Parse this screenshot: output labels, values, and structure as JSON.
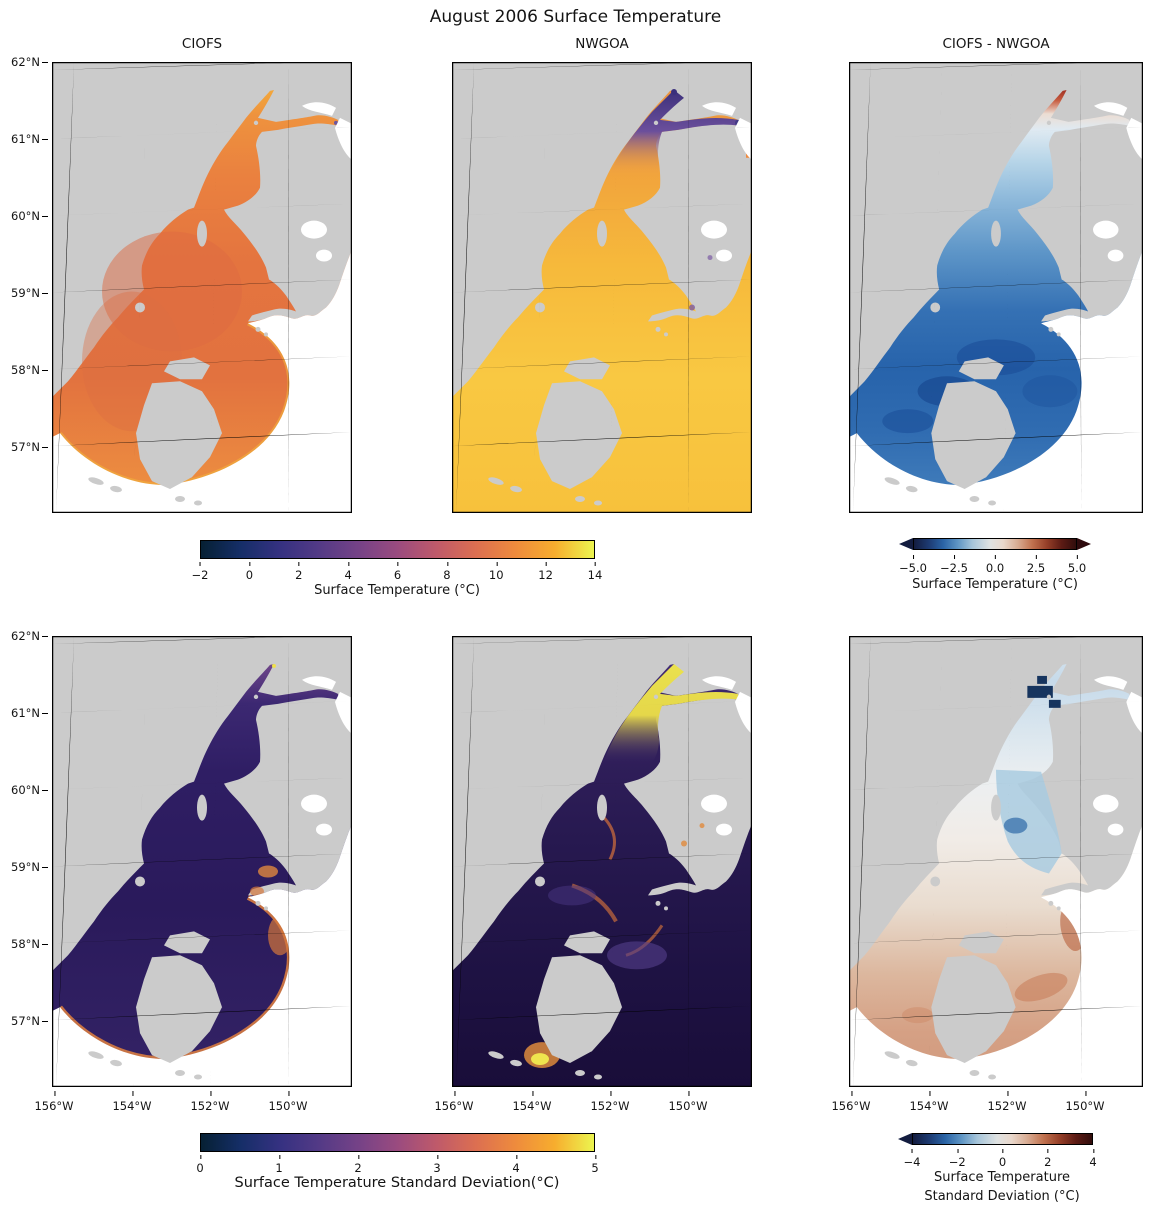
{
  "figure": {
    "title": "August 2006 Surface Temperature"
  },
  "panels": {
    "top_left": {
      "title": "CIOFS"
    },
    "top_middle": {
      "title": "NWGOA"
    },
    "top_right": {
      "title": "CIOFS - NWGOA"
    }
  },
  "axes": {
    "lat_ticks": [
      "62°N",
      "61°N",
      "60°N",
      "59°N",
      "58°N",
      "57°N"
    ],
    "lon_ticks": [
      "156°W",
      "154°W",
      "152°W",
      "150°W"
    ]
  },
  "colorbars": {
    "temperature": {
      "label": "Surface Temperature (°C)",
      "ticks": [
        "−2",
        "0",
        "2",
        "4",
        "6",
        "8",
        "10",
        "12",
        "14"
      ],
      "colormap": "thermal",
      "min": -2,
      "max": 14,
      "extend": "none"
    },
    "temperature_diff": {
      "label": "Surface Temperature (°C)",
      "ticks": [
        "−5.0",
        "−2.5",
        "0.0",
        "2.5",
        "5.0"
      ],
      "colormap": "balance (diverging)",
      "min": -5,
      "max": 5,
      "extend": "both"
    },
    "std": {
      "label": "Surface Temperature Standard Deviation(°C)",
      "ticks": [
        "0",
        "1",
        "2",
        "3",
        "4",
        "5"
      ],
      "colormap": "thermal",
      "min": 0,
      "max": 5,
      "extend": "none"
    },
    "std_diff": {
      "label_line1": "Surface Temperature",
      "label_line2": "Standard Deviation (°C)",
      "ticks": [
        "−4",
        "−2",
        "0",
        "2",
        "4"
      ],
      "colormap": "balance (diverging)",
      "min": -4,
      "max": 4,
      "extend": "min"
    }
  },
  "colors": {
    "land": "#cbcbcb",
    "no_data": "#ffffff",
    "gridline": "#8f8f8f",
    "thermal_start": "#062033",
    "thermal_end": "#ecf54f",
    "balance_negative": "#1d3a71",
    "balance_positive": "#953f28"
  },
  "chart_data": [
    {
      "type": "heatmap",
      "panel": "top-left",
      "title": "CIOFS",
      "variable": "Surface Temperature (°C)",
      "colormap": "thermal",
      "range": [
        -2,
        14
      ],
      "region_values": {
        "upper_inlet_forks": "11–14 (yellow-orange)",
        "mid_inlet_channel": "10–11 (orange)",
        "lower_inlet_and_shelikof_strait": "9–10 (deep orange-red)",
        "fan_domain_edge": "10–12",
        "outside_model_domain": "no data (white)"
      }
    },
    {
      "type": "heatmap",
      "panel": "top-middle",
      "title": "NWGOA",
      "variable": "Surface Temperature (°C)",
      "colormap": "thermal",
      "range": [
        -2,
        14
      ],
      "region_values": {
        "upper_inlet_forks": "0–5 (cold, dark purple tips)",
        "mid_inlet_channel": "9–10 (orange)",
        "gulf_of_alaska_open_water": "11–13 (yellow)",
        "shelikof_strait": "10–12"
      }
    },
    {
      "type": "heatmap",
      "panel": "top-right",
      "title": "CIOFS - NWGOA",
      "variable": "Surface Temperature difference (°C)",
      "colormap": "balance (diverging)",
      "range": [
        -5,
        5
      ],
      "extend": "both",
      "region_values": {
        "upper_inlet_forks": "+3 to +5 (dark red, CIOFS warmer)",
        "mid_inlet": "−1 to −3 (light to mid blue)",
        "lower_inlet_and_strait": "−2 to −5 (deep blue, CIOFS colder)",
        "outside_model_domain": "no data (white)"
      }
    },
    {
      "type": "heatmap",
      "panel": "bottom-left",
      "title": "CIOFS",
      "variable": "Surface Temperature Standard Deviation (°C)",
      "colormap": "thermal",
      "range": [
        0,
        5
      ],
      "region_values": {
        "most_of_domain": "0.5–1.5 (dark purple)",
        "fan_domain_edge_rim": "2.5–4 (orange rim)",
        "upper_arms_and_coastal_spots": "2–4 (orange flecks)"
      }
    },
    {
      "type": "heatmap",
      "panel": "bottom-middle",
      "title": "NWGOA",
      "variable": "Surface Temperature Standard Deviation (°C)",
      "colormap": "thermal",
      "range": [
        0,
        5
      ],
      "region_values": {
        "upper_inlet_forks": "4.5–5 (bright yellow)",
        "open_gulf": "0.5–1.5 (dark navy-purple)",
        "coastal_eddies_and_fronts": "2.5–4 (orange swirls)",
        "eddy_south_of_kodiak": "4–5 (yellow blob)"
      }
    },
    {
      "type": "heatmap",
      "panel": "bottom-right",
      "title": "CIOFS - NWGOA",
      "variable": "Surface Temperature Standard Deviation difference (°C)",
      "colormap": "balance (diverging)",
      "range": [
        -4,
        4
      ],
      "extend": "min",
      "region_values": {
        "upper_inlet_channel": "−1 to −3 (light blue, NWGOA more variable)",
        "fork_patches": "−3 to −4 (dark navy)",
        "outer_fan_region": "+0.5 to +2 (light red)",
        "outside_model_domain": "no data (white)"
      }
    }
  ]
}
